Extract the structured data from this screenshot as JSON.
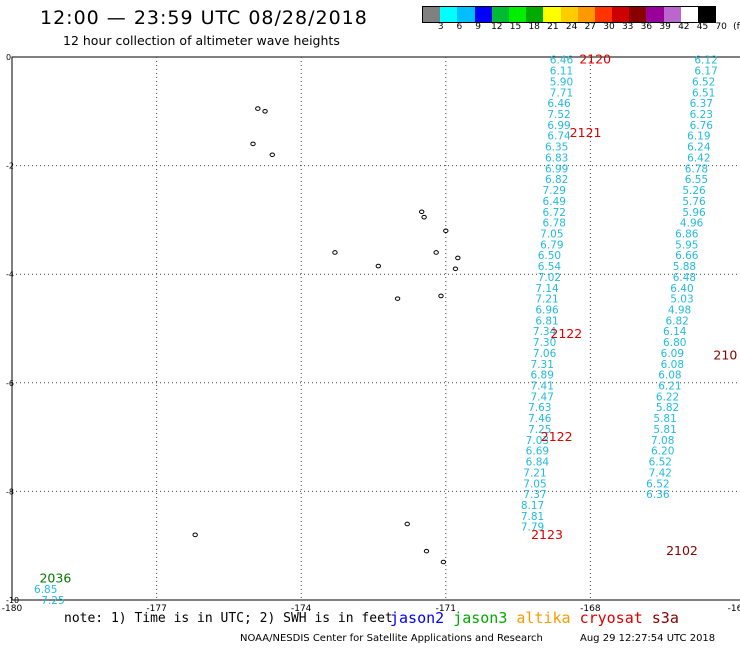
{
  "header": {
    "title": "12:00 — 23:59 UTC 08/28/2018",
    "subtitle": "12 hour collection of altimeter wave heights"
  },
  "legend": {
    "colors": [
      "#808080",
      "#00ffff",
      "#00bfff",
      "#0000ff",
      "#00bb33",
      "#00ee00",
      "#00aa00",
      "#ffff00",
      "#ffcc00",
      "#ff9900",
      "#ff3300",
      "#cc0000",
      "#880000",
      "#990099",
      "#bb66cc",
      "#ffffff",
      "#000000"
    ],
    "labels": [
      "3",
      "6",
      "9",
      "12",
      "15",
      "18",
      "21",
      "24",
      "27",
      "30",
      "33",
      "36",
      "39",
      "42",
      "45",
      "70",
      "(ft)"
    ]
  },
  "axes": {
    "x_ticks": [
      "-180",
      "-177",
      "-174",
      "-171",
      "-168",
      "-16"
    ],
    "y_ticks": [
      "0",
      "-2",
      "-4",
      "-6",
      "-8",
      "-10"
    ]
  },
  "chart_data": {
    "type": "scatter",
    "x_range": [
      -180,
      -165
    ],
    "y_range": [
      -10,
      0
    ],
    "track_labels": [
      {
        "text": "2120",
        "lon": -167.9,
        "lat": -0.05,
        "color": "#dd0000"
      },
      {
        "text": "2121",
        "lon": -168.1,
        "lat": -1.4,
        "color": "#dd0000"
      },
      {
        "text": "2122",
        "lon": -168.5,
        "lat": -5.1,
        "color": "#dd0000"
      },
      {
        "text": "2122",
        "lon": -168.7,
        "lat": -7.0,
        "color": "#dd0000"
      },
      {
        "text": "2123",
        "lon": -168.9,
        "lat": -8.8,
        "color": "#dd0000"
      },
      {
        "text": "2102",
        "lon": -166.1,
        "lat": -9.1,
        "color": "#880000"
      },
      {
        "text": "210",
        "lon": -165.2,
        "lat": -5.5,
        "color": "#880000"
      },
      {
        "text": "2036",
        "lon": -179.1,
        "lat": -9.6,
        "color": "#007700"
      }
    ],
    "series": [
      {
        "name": "track A",
        "color": "#22bbdd",
        "points": [
          [
            -168.6,
            -0.05,
            "6.46"
          ],
          [
            -168.6,
            -0.25,
            "6.11"
          ],
          [
            -168.6,
            -0.45,
            "5.90"
          ],
          [
            -168.6,
            -0.65,
            "7.71"
          ],
          [
            -168.65,
            -0.85,
            "6.46"
          ],
          [
            -168.65,
            -1.05,
            "7.52"
          ],
          [
            -168.65,
            -1.25,
            "6.99"
          ],
          [
            -168.65,
            -1.45,
            "6.74"
          ],
          [
            -168.7,
            -1.65,
            "6.35"
          ],
          [
            -168.7,
            -1.85,
            "6.83"
          ],
          [
            -168.7,
            -2.05,
            "6.99"
          ],
          [
            -168.7,
            -2.25,
            "6.82"
          ],
          [
            -168.75,
            -2.45,
            "7.29"
          ],
          [
            -168.75,
            -2.65,
            "6.49"
          ],
          [
            -168.75,
            -2.85,
            "6.72"
          ],
          [
            -168.75,
            -3.05,
            "6.78"
          ],
          [
            -168.8,
            -3.25,
            "7.05"
          ],
          [
            -168.8,
            -3.45,
            "6.79"
          ],
          [
            -168.85,
            -3.65,
            "6.50"
          ],
          [
            -168.85,
            -3.85,
            "6.54"
          ],
          [
            -168.85,
            -4.05,
            "7.02"
          ],
          [
            -168.9,
            -4.25,
            "7.14"
          ],
          [
            -168.9,
            -4.45,
            "7.21"
          ],
          [
            -168.9,
            -4.65,
            "6.96"
          ],
          [
            -168.9,
            -4.85,
            "6.81"
          ],
          [
            -168.95,
            -5.05,
            "7.34"
          ],
          [
            -168.95,
            -5.25,
            "7.30"
          ],
          [
            -168.95,
            -5.45,
            "7.06"
          ],
          [
            -169.0,
            -5.65,
            "7.31"
          ],
          [
            -169.0,
            -5.85,
            "6.89"
          ],
          [
            -169.0,
            -6.05,
            "7.41"
          ],
          [
            -169.0,
            -6.25,
            "7.47"
          ],
          [
            -169.05,
            -6.45,
            "7.63"
          ],
          [
            -169.05,
            -6.65,
            "7.46"
          ],
          [
            -169.05,
            -6.85,
            "7.25"
          ],
          [
            -169.1,
            -7.05,
            "7.03"
          ],
          [
            -169.1,
            -7.25,
            "6.69"
          ],
          [
            -169.1,
            -7.45,
            "6.84"
          ],
          [
            -169.15,
            -7.65,
            "7.21"
          ],
          [
            -169.15,
            -7.85,
            "7.05"
          ],
          [
            -169.15,
            -8.05,
            "7.37"
          ],
          [
            -169.2,
            -8.25,
            "8.17"
          ],
          [
            -169.2,
            -8.45,
            "7.81"
          ],
          [
            -169.2,
            -8.65,
            "7.79"
          ]
        ]
      },
      {
        "name": "track B",
        "color": "#22bbdd",
        "points": [
          [
            -165.6,
            -0.05,
            "6.12"
          ],
          [
            -165.6,
            -0.25,
            "6.17"
          ],
          [
            -165.65,
            -0.45,
            "6.52"
          ],
          [
            -165.65,
            -0.65,
            "6.51"
          ],
          [
            -165.7,
            -0.85,
            "6.37"
          ],
          [
            -165.7,
            -1.05,
            "6.23"
          ],
          [
            -165.7,
            -1.25,
            "6.76"
          ],
          [
            -165.75,
            -1.45,
            "6.19"
          ],
          [
            -165.75,
            -1.65,
            "6.24"
          ],
          [
            -165.75,
            -1.85,
            "6.42"
          ],
          [
            -165.8,
            -2.05,
            "6.78"
          ],
          [
            -165.8,
            -2.25,
            "6.55"
          ],
          [
            -165.85,
            -2.45,
            "5.26"
          ],
          [
            -165.85,
            -2.65,
            "5.76"
          ],
          [
            -165.85,
            -2.85,
            "5.96"
          ],
          [
            -165.9,
            -3.05,
            "4.96"
          ],
          [
            -166.0,
            -3.25,
            "6.86"
          ],
          [
            -166.0,
            -3.45,
            "5.95"
          ],
          [
            -166.0,
            -3.65,
            "6.66"
          ],
          [
            -166.05,
            -3.85,
            "5.88"
          ],
          [
            -166.05,
            -4.05,
            "6.48"
          ],
          [
            -166.1,
            -4.25,
            "6.40"
          ],
          [
            -166.1,
            -4.45,
            "5.03"
          ],
          [
            -166.15,
            -4.65,
            "4.98"
          ],
          [
            -166.2,
            -4.85,
            "6.82"
          ],
          [
            -166.25,
            -5.05,
            "6.14"
          ],
          [
            -166.25,
            -5.25,
            "6.80"
          ],
          [
            -166.3,
            -5.45,
            "6.09"
          ],
          [
            -166.3,
            -5.65,
            "6.08"
          ],
          [
            -166.35,
            -5.85,
            "6.08"
          ],
          [
            -166.35,
            -6.05,
            "6.21"
          ],
          [
            -166.4,
            -6.25,
            "6.22"
          ],
          [
            -166.4,
            -6.45,
            "5.82"
          ],
          [
            -166.45,
            -6.65,
            "5.81"
          ],
          [
            -166.45,
            -6.85,
            "5.81"
          ],
          [
            -166.5,
            -7.05,
            "7.08"
          ],
          [
            -166.5,
            -7.25,
            "6.20"
          ],
          [
            -166.55,
            -7.45,
            "6.52"
          ],
          [
            -166.55,
            -7.65,
            "7.42"
          ],
          [
            -166.6,
            -7.85,
            "6.52"
          ],
          [
            -166.6,
            -8.05,
            "6.36"
          ]
        ]
      },
      {
        "name": "track C",
        "color": "#22bbdd",
        "points": [
          [
            -179.3,
            -9.8,
            "6.85"
          ],
          [
            -179.15,
            -10.0,
            "7.25"
          ]
        ]
      }
    ],
    "islands": [
      [
        -174.9,
        -0.95
      ],
      [
        -174.75,
        -1.0
      ],
      [
        -175.0,
        -1.6
      ],
      [
        -174.6,
        -1.8
      ],
      [
        -173.3,
        -3.6
      ],
      [
        -172.4,
        -3.85
      ],
      [
        -171.5,
        -2.85
      ],
      [
        -171.45,
        -2.95
      ],
      [
        -171.0,
        -3.2
      ],
      [
        -171.2,
        -3.6
      ],
      [
        -170.75,
        -3.7
      ],
      [
        -170.8,
        -3.9
      ],
      [
        -172.0,
        -4.45
      ],
      [
        -171.1,
        -4.4
      ],
      [
        -171.8,
        -8.6
      ],
      [
        -171.4,
        -9.1
      ],
      [
        -171.05,
        -9.3
      ],
      [
        -176.2,
        -8.8
      ]
    ]
  },
  "footer": {
    "note": "note: 1) Time is in UTC; 2) SWH is in feet",
    "satellites": [
      {
        "name": "jason2",
        "color": "#0000ff"
      },
      {
        "name": "jason3",
        "color": "#00aa00"
      },
      {
        "name": "altika",
        "color": "#ff9900"
      },
      {
        "name": "cryosat",
        "color": "#dd0000"
      },
      {
        "name": "s3a",
        "color": "#880000"
      }
    ],
    "credit": "NOAA/NESDIS Center for Satellite Applications and Research",
    "timestamp": "Aug 29 12:27:54 UTC 2018"
  }
}
